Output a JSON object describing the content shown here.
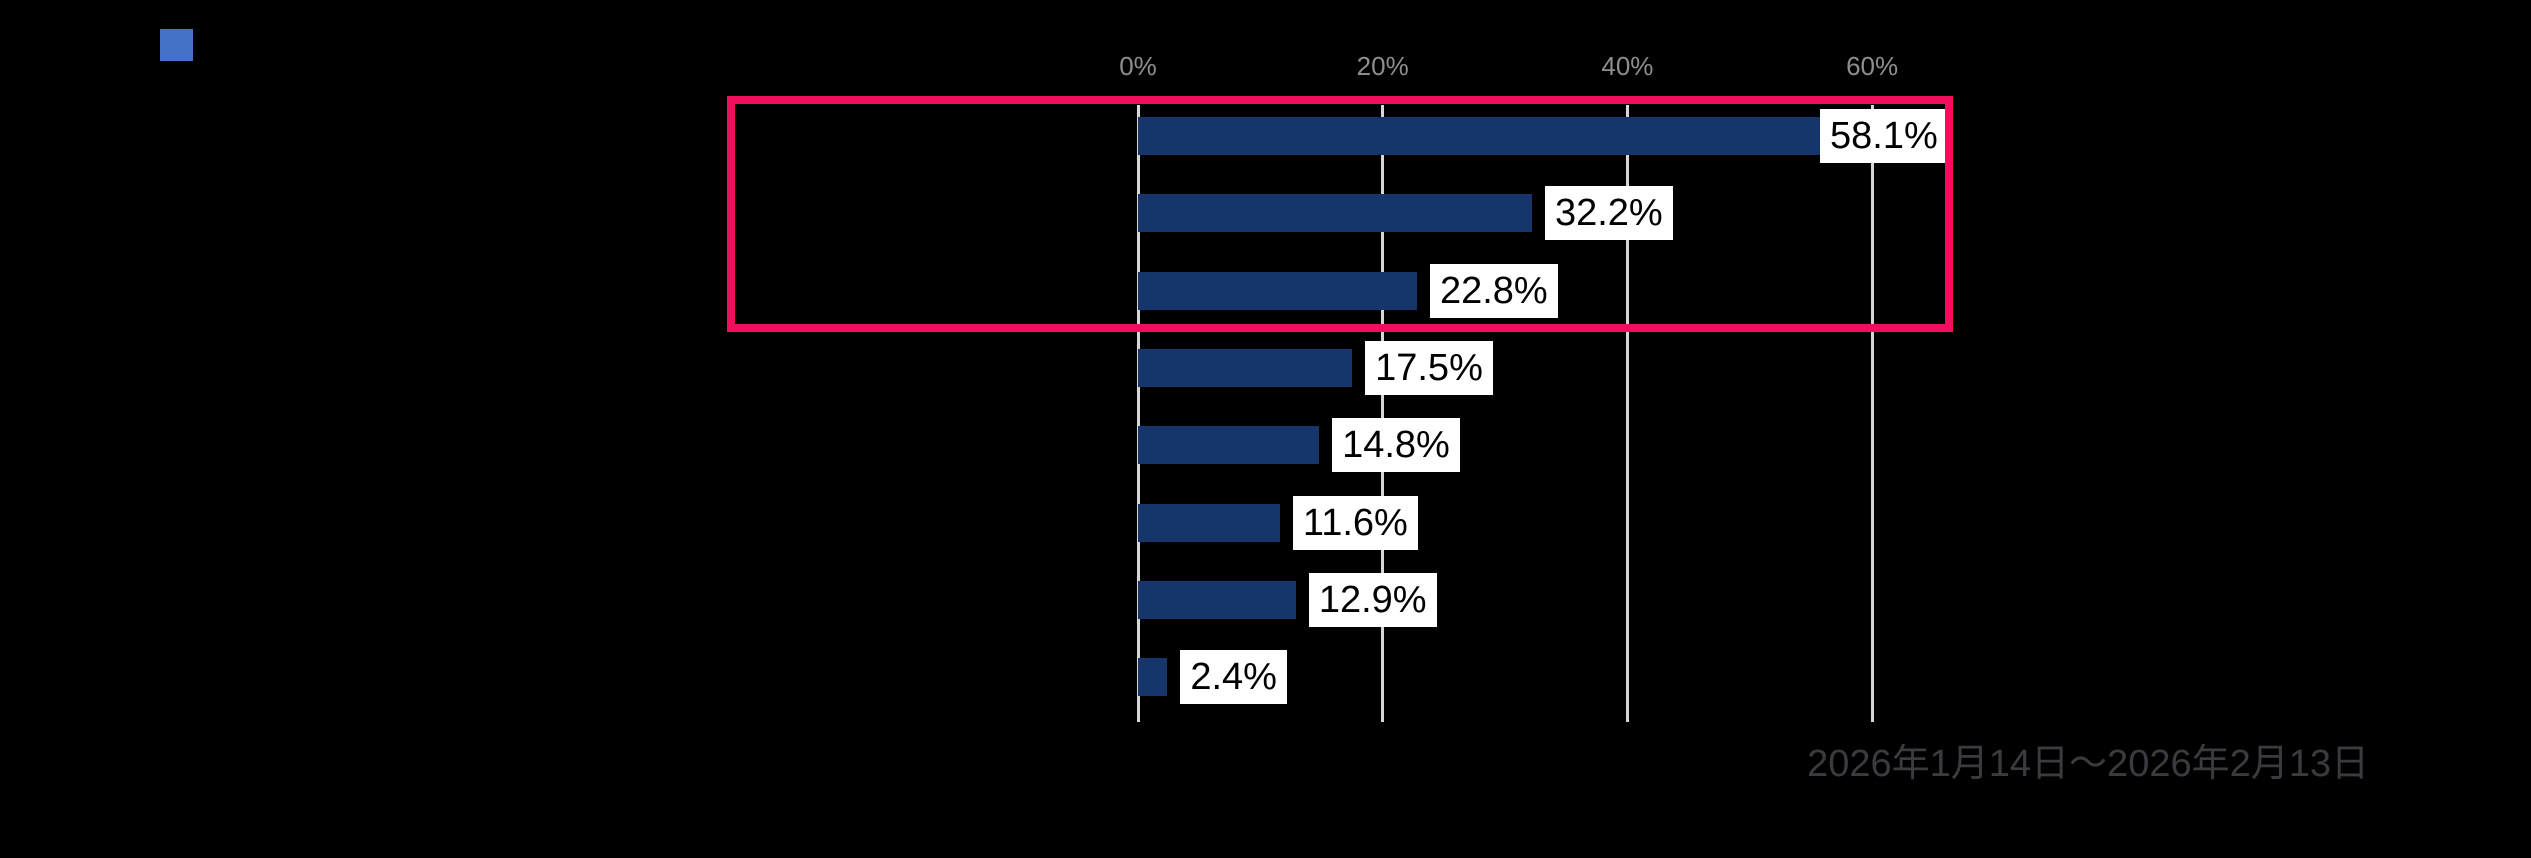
{
  "colors": {
    "background": "#000000",
    "bar": "#16356B",
    "gridline": "#D6D6D6",
    "axis_label": "#8E8E8E",
    "data_label_bg": "#FFFFFF",
    "data_label_text": "#000000",
    "highlight": "#F20D5F",
    "footnote": "#3A3B3F",
    "legend_marker": "#4472C4"
  },
  "legend": {
    "marker_color": "#4472C4",
    "position": "top-left"
  },
  "chart_data": {
    "type": "bar",
    "orientation": "horizontal",
    "values": [
      58.1,
      32.2,
      22.8,
      17.5,
      14.8,
      11.6,
      12.9,
      2.4
    ],
    "data_labels": [
      "58.1%",
      "32.2%",
      "22.8%",
      "17.5%",
      "14.8%",
      "11.6%",
      "12.9%",
      "2.4%"
    ],
    "x_tick_values": [
      0,
      20,
      40,
      60
    ],
    "x_tick_labels": [
      "0%",
      "20%",
      "40%",
      "60%"
    ],
    "grid": true,
    "gridline_spacing_pct": 20,
    "highlight_rows": [
      1,
      2,
      3
    ],
    "footnote": "2026年1月14日〜2026年2月13日"
  }
}
